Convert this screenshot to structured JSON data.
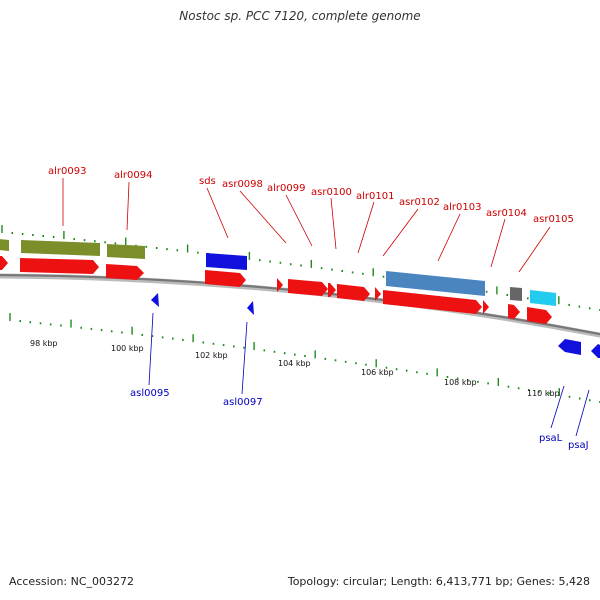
{
  "title": "Nostoc sp. PCC 7120, complete genome",
  "footer": {
    "accession": "Accession: NC_003272",
    "summary": "Topology: circular; Length: 6,413,771 bp; Genes: 5,428"
  },
  "colors": {
    "backbone": "#888888",
    "tick": "#1e8a1e",
    "red_gene": "#ee1111",
    "blue_gene": "#1111dd",
    "olive_gene": "#7a8f2a",
    "steel_gene": "#4a85c0",
    "gray_gene": "#666666",
    "cyan_gene": "#22ccee",
    "label_red": "#cc0000",
    "label_blue": "#0000bb"
  },
  "tick_labels": [
    "98 kbp",
    "100 kbp",
    "102 kbp",
    "104 kbp",
    "106 kbp",
    "108 kbp",
    "110 kbp"
  ],
  "upper_labels": [
    "alr0093",
    "alr0094",
    "sds",
    "asr0098",
    "alr0099",
    "asr0100",
    "alr0101",
    "asr0102",
    "alr0103",
    "asr0104",
    "asr0105"
  ],
  "lower_labels": [
    "asl0095",
    "asl0097",
    "psaL",
    "psaJ"
  ]
}
